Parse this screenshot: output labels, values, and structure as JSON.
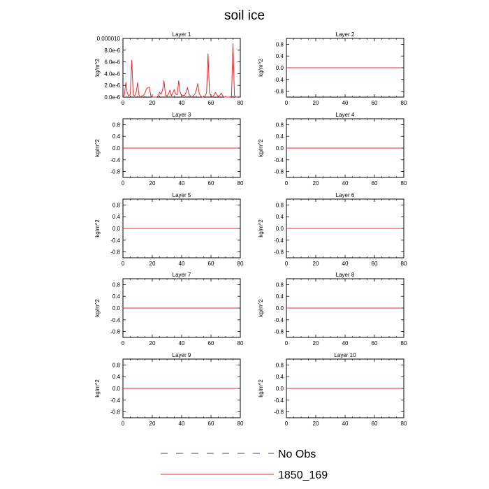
{
  "title": "soil ice",
  "legend": [
    {
      "label": "No Obs",
      "color": "#3a3aa8",
      "style": "dashed"
    },
    {
      "label": "1850_169",
      "color": "#e8282d",
      "style": "solid"
    }
  ],
  "chart_data": [
    {
      "type": "line",
      "title": "Layer 1",
      "xlabel": "",
      "ylabel": "kg/m^2",
      "xlim": [
        0,
        80
      ],
      "ylim": [
        0,
        1e-05
      ],
      "xticks": [
        0,
        20,
        40,
        60,
        80
      ],
      "yticks": [
        0,
        2e-06,
        4e-06,
        6e-06,
        8e-06,
        1e-05
      ],
      "ytick_labels": [
        "0.0e-6",
        "2.0e-6",
        "4.0e-6",
        "6.0e-6",
        "8.0e-6",
        "0.000010"
      ],
      "series": [
        {
          "name": "1850_169",
          "x": [
            0,
            1,
            2,
            3,
            4,
            5,
            6,
            7,
            8,
            9,
            10,
            11,
            12,
            13,
            14,
            15,
            16,
            17,
            18,
            19,
            20,
            21,
            22,
            23,
            24,
            25,
            26,
            27,
            28,
            29,
            30,
            31,
            32,
            33,
            34,
            35,
            36,
            37,
            38,
            39,
            40,
            41,
            42,
            43,
            44,
            45,
            46,
            47,
            48,
            49,
            50,
            51,
            52,
            53,
            54,
            55,
            56,
            57,
            58,
            59,
            60,
            61,
            62,
            63,
            64,
            65,
            66,
            67,
            68,
            69,
            70,
            71,
            72,
            73,
            74,
            75,
            76,
            77,
            78
          ],
          "values": [
            0,
            4e-07,
            2.5e-06,
            6e-07,
            2e-07,
            5e-07,
            6.3e-06,
            4e-07,
            2e-07,
            8e-07,
            2.5e-06,
            3e-07,
            0,
            2e-07,
            3e-07,
            7e-07,
            1.4e-06,
            1.6e-06,
            1.7e-06,
            2e-07,
            0,
            0,
            0,
            0,
            2e-07,
            8e-07,
            5e-07,
            1.2e-06,
            2.8e-06,
            3e-07,
            2e-07,
            5e-07,
            1.2e-06,
            2e-07,
            7e-07,
            1.3e-06,
            5e-07,
            4e-07,
            2.8e-06,
            8e-07,
            2e-07,
            3e-07,
            3e-07,
            8e-07,
            1.6e-06,
            5e-07,
            2e-07,
            0,
            2e-07,
            5e-07,
            1.2e-06,
            2.3e-06,
            6e-07,
            2e-07,
            0,
            0,
            2e-07,
            7e-07,
            7.4e-06,
            8e-07,
            2e-07,
            0,
            3e-07,
            8e-07,
            4e-07,
            1e-07,
            3e-07,
            7e-07,
            2e-07,
            0,
            0,
            0,
            0,
            0,
            2e-07,
            9.1e-06,
            3e-07,
            0,
            0
          ]
        }
      ]
    },
    {
      "type": "line",
      "title": "Layer 2",
      "xlabel": "",
      "ylabel": "kg/m^2",
      "xlim": [
        0,
        80
      ],
      "ylim": [
        -1,
        1
      ],
      "xticks": [
        0,
        20,
        40,
        60,
        80
      ],
      "yticks": [
        -0.8,
        -0.4,
        0,
        0.4,
        0.8
      ],
      "ytick_labels": [
        "-0.8",
        "-0.4",
        "0.0",
        "0.4",
        "0.8"
      ],
      "series": [
        {
          "name": "1850_169",
          "x": [
            0,
            78
          ],
          "values": [
            0,
            0
          ]
        }
      ]
    },
    {
      "type": "line",
      "title": "Layer 3",
      "xlabel": "",
      "ylabel": "kg/m^2",
      "xlim": [
        0,
        80
      ],
      "ylim": [
        -1,
        1
      ],
      "xticks": [
        0,
        20,
        40,
        60,
        80
      ],
      "yticks": [
        -0.8,
        -0.4,
        0,
        0.4,
        0.8
      ],
      "ytick_labels": [
        "-0.8",
        "-0.4",
        "0.0",
        "0.4",
        "0.8"
      ],
      "series": [
        {
          "name": "1850_169",
          "x": [
            0,
            78
          ],
          "values": [
            0,
            0
          ]
        }
      ]
    },
    {
      "type": "line",
      "title": "Layer 4",
      "xlabel": "",
      "ylabel": "kg/m^2",
      "xlim": [
        0,
        80
      ],
      "ylim": [
        -1,
        1
      ],
      "xticks": [
        0,
        20,
        40,
        60,
        80
      ],
      "yticks": [
        -0.8,
        -0.4,
        0,
        0.4,
        0.8
      ],
      "ytick_labels": [
        "-0.8",
        "-0.4",
        "0.0",
        "0.4",
        "0.8"
      ],
      "series": [
        {
          "name": "1850_169",
          "x": [
            0,
            78
          ],
          "values": [
            0,
            0
          ]
        }
      ]
    },
    {
      "type": "line",
      "title": "Layer 5",
      "xlabel": "",
      "ylabel": "kg/m^2",
      "xlim": [
        0,
        80
      ],
      "ylim": [
        -1,
        1
      ],
      "xticks": [
        0,
        20,
        40,
        60,
        80
      ],
      "yticks": [
        -0.8,
        -0.4,
        0,
        0.4,
        0.8
      ],
      "ytick_labels": [
        "-0.8",
        "-0.4",
        "0.0",
        "0.4",
        "0.8"
      ],
      "series": [
        {
          "name": "1850_169",
          "x": [
            0,
            78
          ],
          "values": [
            0,
            0
          ]
        }
      ]
    },
    {
      "type": "line",
      "title": "Layer 6",
      "xlabel": "",
      "ylabel": "kg/m^2",
      "xlim": [
        0,
        80
      ],
      "ylim": [
        -1,
        1
      ],
      "xticks": [
        0,
        20,
        40,
        60,
        80
      ],
      "yticks": [
        -0.8,
        -0.4,
        0,
        0.4,
        0.8
      ],
      "ytick_labels": [
        "-0.8",
        "-0.4",
        "0.0",
        "0.4",
        "0.8"
      ],
      "series": [
        {
          "name": "1850_169",
          "x": [
            0,
            78
          ],
          "values": [
            0,
            0
          ]
        }
      ]
    },
    {
      "type": "line",
      "title": "Layer 7",
      "xlabel": "",
      "ylabel": "kg/m^2",
      "xlim": [
        0,
        80
      ],
      "ylim": [
        -1,
        1
      ],
      "xticks": [
        0,
        20,
        40,
        60,
        80
      ],
      "yticks": [
        -0.8,
        -0.4,
        0,
        0.4,
        0.8
      ],
      "ytick_labels": [
        "-0.8",
        "-0.4",
        "0.0",
        "0.4",
        "0.8"
      ],
      "series": [
        {
          "name": "1850_169",
          "x": [
            0,
            78
          ],
          "values": [
            0,
            0
          ]
        }
      ]
    },
    {
      "type": "line",
      "title": "Layer 8",
      "xlabel": "",
      "ylabel": "kg/m^2",
      "xlim": [
        0,
        80
      ],
      "ylim": [
        -1,
        1
      ],
      "xticks": [
        0,
        20,
        40,
        60,
        80
      ],
      "yticks": [
        -0.8,
        -0.4,
        0,
        0.4,
        0.8
      ],
      "ytick_labels": [
        "-0.8",
        "-0.4",
        "0.0",
        "0.4",
        "0.8"
      ],
      "series": [
        {
          "name": "1850_169",
          "x": [
            0,
            78
          ],
          "values": [
            0,
            0
          ]
        }
      ]
    },
    {
      "type": "line",
      "title": "Layer 9",
      "xlabel": "",
      "ylabel": "kg/m^2",
      "xlim": [
        0,
        80
      ],
      "ylim": [
        -1,
        1
      ],
      "xticks": [
        0,
        20,
        40,
        60,
        80
      ],
      "yticks": [
        -0.8,
        -0.4,
        0,
        0.4,
        0.8
      ],
      "ytick_labels": [
        "-0.8",
        "-0.4",
        "0.0",
        "0.4",
        "0.8"
      ],
      "series": [
        {
          "name": "1850_169",
          "x": [
            0,
            78
          ],
          "values": [
            0,
            0
          ]
        }
      ]
    },
    {
      "type": "line",
      "title": "Layer 10",
      "xlabel": "",
      "ylabel": "kg/m^2",
      "xlim": [
        0,
        80
      ],
      "ylim": [
        -1,
        1
      ],
      "xticks": [
        0,
        20,
        40,
        60,
        80
      ],
      "yticks": [
        -0.8,
        -0.4,
        0,
        0.4,
        0.8
      ],
      "ytick_labels": [
        "-0.8",
        "-0.4",
        "0.0",
        "0.4",
        "0.8"
      ],
      "series": [
        {
          "name": "1850_169",
          "x": [
            0,
            78
          ],
          "values": [
            0,
            0
          ]
        }
      ]
    }
  ]
}
